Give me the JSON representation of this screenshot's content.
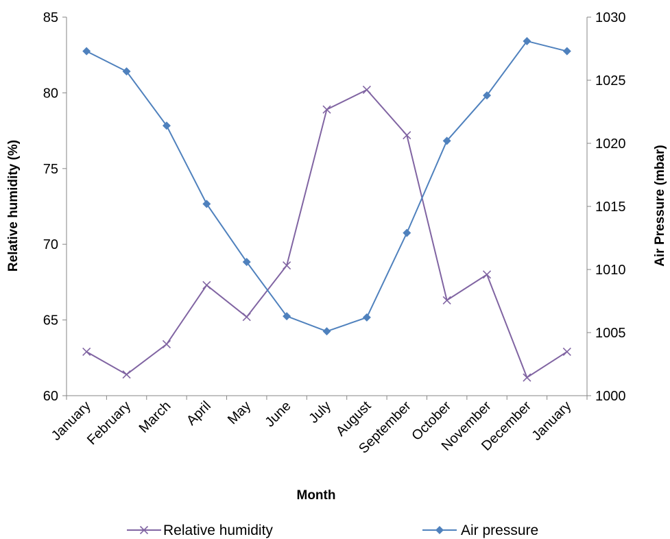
{
  "chart_data": {
    "type": "line",
    "categories": [
      "January",
      "February",
      "March",
      "April",
      "May",
      "June",
      "July",
      "August",
      "September",
      "October",
      "November",
      "December",
      "January"
    ],
    "xlabel": "Month",
    "ylabel": "Relative humidity (%)",
    "y2label": "Air Pressure (mbar)",
    "ylim": [
      60,
      85
    ],
    "y2lim": [
      1000,
      1030
    ],
    "yticks": [
      "60",
      "65",
      "70",
      "75",
      "80",
      "85"
    ],
    "y2ticks": [
      "1000",
      "1005",
      "1010",
      "1015",
      "1020",
      "1025",
      "1030"
    ],
    "grid": false,
    "legend_position": "bottom",
    "series": [
      {
        "name": "Relative humidity",
        "axis": "left",
        "color": "#8064a2",
        "marker": "x",
        "values": [
          62.9,
          61.4,
          63.4,
          67.3,
          65.2,
          68.6,
          78.9,
          80.2,
          77.2,
          66.3,
          68.0,
          61.2,
          62.9
        ]
      },
      {
        "name": "Air pressure",
        "axis": "right",
        "color": "#4f81bd",
        "marker": "diamond",
        "values": [
          1027.3,
          1025.7,
          1021.4,
          1015.2,
          1010.6,
          1006.3,
          1005.1,
          1006.2,
          1012.9,
          1020.2,
          1023.8,
          1028.1,
          1027.3
        ]
      }
    ]
  }
}
